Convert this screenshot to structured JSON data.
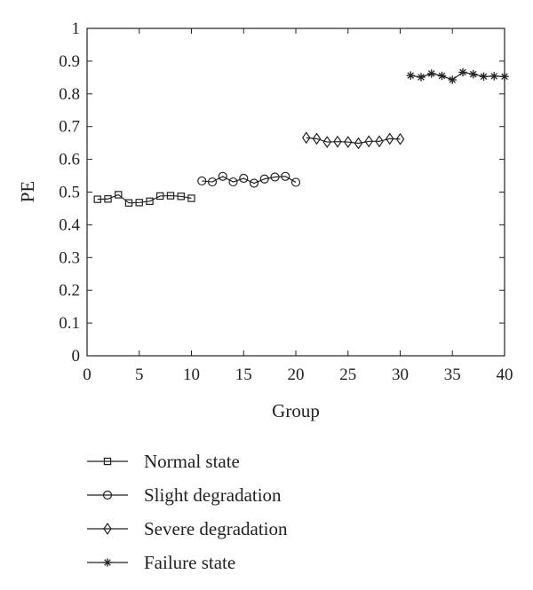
{
  "chart_data": {
    "type": "line",
    "title": "",
    "xlabel": "Group",
    "ylabel": "PE",
    "xlim": [
      0,
      40
    ],
    "ylim": [
      0,
      1
    ],
    "xticks": [
      0,
      5,
      10,
      15,
      20,
      25,
      30,
      35,
      40
    ],
    "yticks": [
      0,
      0.1,
      0.2,
      0.3,
      0.4,
      0.5,
      0.6,
      0.7,
      0.8,
      0.9,
      1
    ],
    "ytick_labels": [
      "0",
      "0.1",
      "0.2",
      "0.3",
      "0.4",
      "0.5",
      "0.6",
      "0.7",
      "0.8",
      "0.9",
      "1"
    ],
    "grid": false,
    "legend_position": "below",
    "series": [
      {
        "name": "Normal state",
        "marker": "square",
        "x": [
          1,
          2,
          3,
          4,
          5,
          6,
          7,
          8,
          9,
          10
        ],
        "y": [
          0.478,
          0.479,
          0.492,
          0.467,
          0.468,
          0.472,
          0.488,
          0.489,
          0.487,
          0.481
        ]
      },
      {
        "name": "Slight degradation",
        "marker": "circle",
        "x": [
          11,
          12,
          13,
          14,
          15,
          16,
          17,
          18,
          19,
          20
        ],
        "y": [
          0.534,
          0.531,
          0.548,
          0.531,
          0.542,
          0.527,
          0.54,
          0.546,
          0.548,
          0.53
        ]
      },
      {
        "name": "Severe degradation",
        "marker": "diamond",
        "x": [
          21,
          22,
          23,
          24,
          25,
          26,
          27,
          28,
          29,
          30
        ],
        "y": [
          0.666,
          0.663,
          0.653,
          0.654,
          0.653,
          0.649,
          0.655,
          0.655,
          0.663,
          0.662
        ]
      },
      {
        "name": "Failure state",
        "marker": "star",
        "x": [
          31,
          32,
          33,
          34,
          35,
          36,
          37,
          38,
          39,
          40
        ],
        "y": [
          0.856,
          0.851,
          0.862,
          0.855,
          0.843,
          0.866,
          0.86,
          0.853,
          0.854,
          0.853
        ]
      }
    ]
  }
}
